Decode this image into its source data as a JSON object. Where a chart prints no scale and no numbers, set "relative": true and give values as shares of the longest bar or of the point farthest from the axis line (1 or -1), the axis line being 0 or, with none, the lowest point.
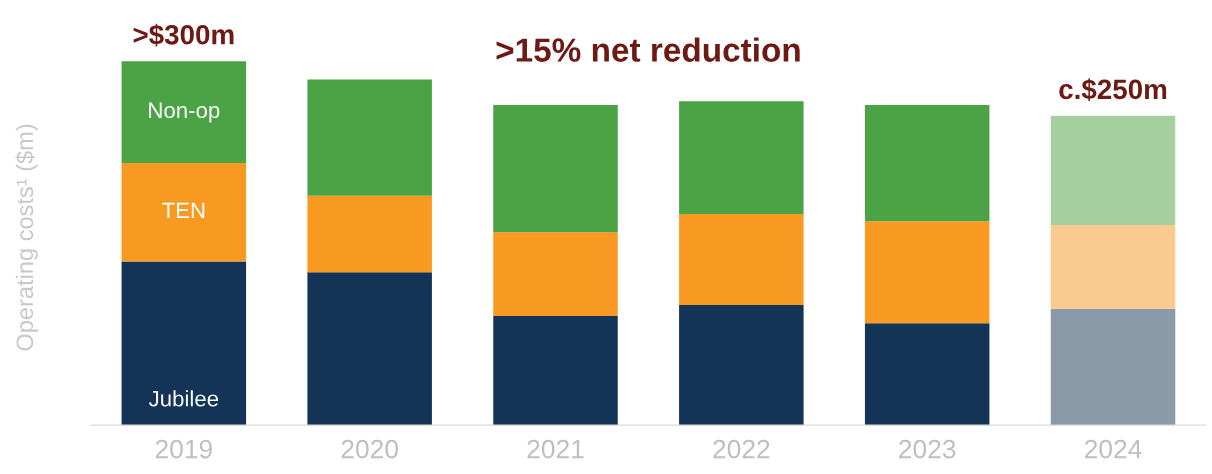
{
  "chart_data": {
    "type": "bar",
    "stacked": true,
    "relative": true,
    "ylabel": "Operating costs¹ ($m)",
    "categories": [
      "2019",
      "2020",
      "2021",
      "2022",
      "2023",
      "2024"
    ],
    "series": [
      {
        "name": "Jubilee",
        "colors": [
          "#133457",
          "#133457",
          "#133457",
          "#133457",
          "#133457",
          "#8a9aa9"
        ],
        "values": [
          0.45,
          0.42,
          0.3,
          0.33,
          0.28,
          0.32
        ]
      },
      {
        "name": "TEN",
        "colors": [
          "#f89a22",
          "#f89a22",
          "#f89a22",
          "#f89a22",
          "#f89a22",
          "#fbca8f"
        ],
        "values": [
          0.27,
          0.21,
          0.23,
          0.25,
          0.28,
          0.23
        ]
      },
      {
        "name": "Non-op",
        "colors": [
          "#4ba346",
          "#4ba346",
          "#4ba346",
          "#4ba346",
          "#4ba346",
          "#a6cf9f"
        ],
        "values": [
          0.28,
          0.32,
          0.35,
          0.31,
          0.32,
          0.3
        ]
      }
    ],
    "annotations": [
      {
        "text": ">$300m",
        "x": "2019",
        "y": 1.0
      },
      {
        "text": "c.$250m",
        "x": "2024",
        "y": 0.85
      },
      ">15% net reduction"
    ],
    "grid": false,
    "legend": false
  }
}
